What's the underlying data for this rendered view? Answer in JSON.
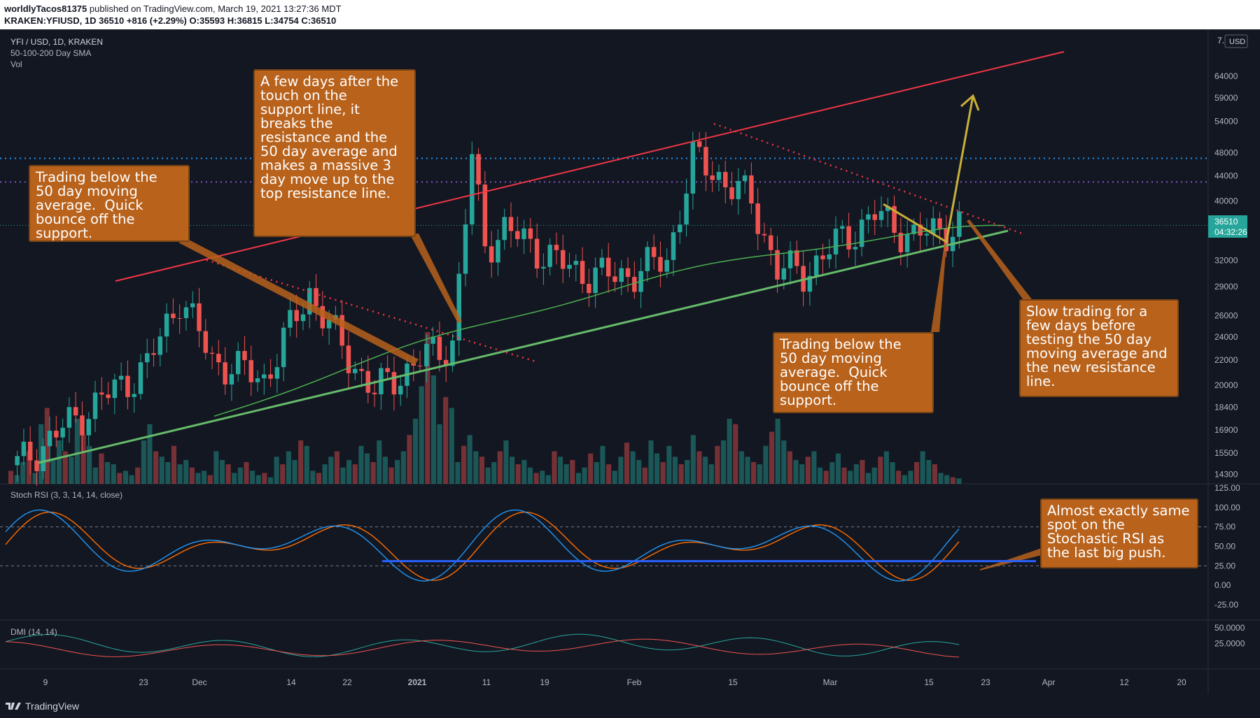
{
  "header": {
    "author": "worldlyTacos81375",
    "published": "published on TradingView.com, March 19, 2021 13:27:36 MDT",
    "symbol_line_prefix": "KRAKEN:YFIUSD, 1D",
    "price": "36510",
    "change": "+816 (+2.29%)",
    "o_label": "O:",
    "o_value": "35593",
    "h_label": "H:",
    "h_value": "36815",
    "l_label": "L:",
    "l_value": "34754",
    "c_label": "C:",
    "c_value": "36510"
  },
  "legend": {
    "title": "YFI / USD, 1D, KRAKEN",
    "sma": "50-100-200 Day SMA",
    "vol": "Vol",
    "stoch": "Stoch RSI (3, 3, 14, 14, close)",
    "dmi": "DMI (14, 14)"
  },
  "price_axis": {
    "currency": "USD",
    "top_stub": "7.",
    "ticks": [
      "64000",
      "59000",
      "54000",
      "48000",
      "44000",
      "40000",
      "32000",
      "29000",
      "26000",
      "24000",
      "22000",
      "20000",
      "18400",
      "16900",
      "15500",
      "14300"
    ],
    "last_price": "36510",
    "countdown": "04:32:26"
  },
  "stoch_axis": {
    "ticks": [
      "125.00",
      "100.00",
      "75.00",
      "50.00",
      "25.00",
      "0.00",
      "-25.00"
    ]
  },
  "dmi_axis": {
    "ticks": [
      "50.0000",
      "25.0000"
    ]
  },
  "time_axis": {
    "ticks": [
      "9",
      "23",
      "Dec",
      "14",
      "22",
      "2021",
      "11",
      "19",
      "Feb",
      "15",
      "Mar",
      "15",
      "23",
      "Apr",
      "12",
      "20"
    ]
  },
  "annotations": {
    "left": "Trading below the\n50 day moving\naverage.  Quick\nbounce off the\nsupport.",
    "top": "A few days after the\ntouch on the\nsupport line, it\nbreaks the\nresistance and the\n50 day average and\nmakes a massive 3\nday move up to the\ntop resistance line.",
    "mid": "Trading below the\n50 day moving\naverage.  Quick\nbounce off the\nsupport.",
    "right": "Slow trading for a\nfew days before\ntesting the 50 day\nmoving average and\nthe new resistance\nline.",
    "stoch": "Almost exactly same\nspot on the\nStochastic RSI as\nthe last big push."
  },
  "footer": {
    "brand": "TradingView"
  },
  "colors": {
    "background": "#131722",
    "up_candle": "#26a69a",
    "down_candle": "#ef5350",
    "sma50": "#4caf50",
    "resistance": "#f23645",
    "support": "#66bb6a",
    "projection": "#c9b037",
    "level_blue": "#2196f3",
    "level_purple": "#7e57c2",
    "stoch_k": "#2196f3",
    "stoch_d": "#ff6d00",
    "note_fill": "#b8621c"
  },
  "chart_data": {
    "type": "candlestick",
    "symbol": "YFI / USD, 1D, KRAKEN",
    "y_scale": "log",
    "ylim": [
      13800,
      74000
    ],
    "x_labels": [
      "9",
      "23",
      "Dec",
      "14",
      "22",
      "2021",
      "11",
      "19",
      "Feb",
      "15",
      "Mar",
      "15",
      "23",
      "Apr",
      "12",
      "20"
    ],
    "last": 36510,
    "ohlc_last": {
      "open": 35593,
      "high": 36815,
      "low": 34754,
      "close": 36510
    },
    "key_levels": [
      47000,
      43000
    ],
    "sma50_start": 17800,
    "sma50_end": 36200,
    "stochastic_rsi_ticks": [
      125,
      100,
      75,
      50,
      25,
      0,
      -25
    ],
    "dmi_ticks": [
      50,
      25
    ],
    "volume_bars": [
      12,
      8,
      20,
      30,
      10,
      55,
      70,
      22,
      40,
      30,
      25,
      60,
      45,
      35,
      15,
      28,
      20,
      18,
      10,
      12,
      8,
      15,
      40,
      55,
      30,
      25,
      20,
      35,
      18,
      22,
      15,
      10,
      12,
      8,
      30,
      22,
      18,
      10,
      15,
      20,
      12,
      8,
      10,
      6,
      25,
      18,
      30,
      22,
      40,
      35,
      12,
      10,
      18,
      25,
      30,
      15,
      22,
      18,
      35,
      28,
      20,
      40,
      25,
      15,
      22,
      30,
      45,
      60,
      90,
      140,
      100,
      55,
      80,
      70,
      20,
      35,
      45,
      30,
      25,
      15,
      20,
      30,
      40,
      25,
      18,
      22,
      15,
      10,
      12,
      8,
      30,
      25,
      18,
      22,
      10,
      15,
      28,
      20,
      35,
      18,
      12,
      25,
      38,
      30,
      22,
      15,
      40,
      28,
      20,
      35,
      25,
      18,
      22,
      45,
      30,
      25,
      18,
      35,
      40,
      60,
      55,
      30,
      25,
      20,
      18,
      35,
      48,
      60,
      40,
      30,
      22,
      18,
      25,
      30,
      15,
      12,
      20,
      28,
      15,
      12,
      18,
      22,
      10,
      15,
      25,
      30,
      20,
      12,
      8,
      12,
      20,
      30,
      22,
      18,
      10,
      8,
      6,
      5
    ]
  }
}
